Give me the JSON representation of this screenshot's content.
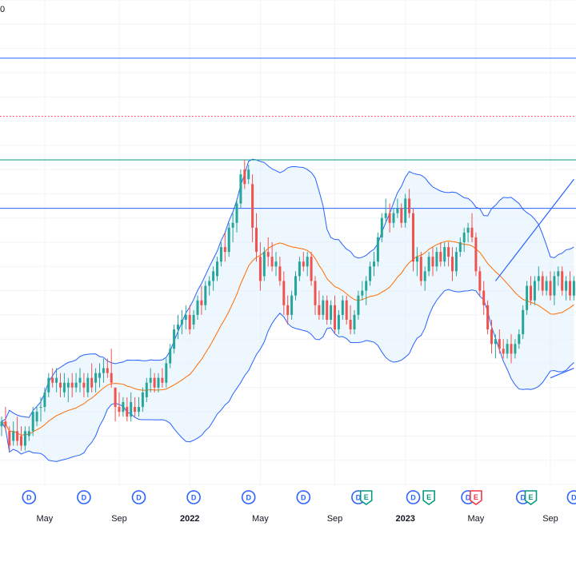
{
  "top_label": "0",
  "colors": {
    "up": "#26a69a",
    "down": "#ef5350",
    "grid": "#f0f3fa",
    "band_line": "#2962ff",
    "band_fill": "#e3f2fd",
    "basis": "#ff6d00",
    "hline_blue": "#2962ff",
    "hline_green": "#089981",
    "hline_red_dotted": "#f23645",
    "dividend": "#2962ff",
    "earnings_up": "#089981",
    "earnings_down": "#f23645"
  },
  "chart_data": {
    "type": "candlestick",
    "title": "",
    "indicators": [
      "Bollinger Bands"
    ],
    "x_axis": {
      "ticks": [
        {
          "label": "May",
          "index": 11
        },
        {
          "label": "Sep",
          "index": 30
        },
        {
          "label": "2022",
          "index": 48
        },
        {
          "label": "May",
          "index": 66
        },
        {
          "label": "Sep",
          "index": 85
        },
        {
          "label": "2023",
          "index": 103
        },
        {
          "label": "May",
          "index": 121
        },
        {
          "label": "Sep",
          "index": 140
        }
      ]
    },
    "y_range": [
      30,
      130
    ],
    "horizontal_lines": [
      {
        "value": 118,
        "style": "solid",
        "color_key": "hline_blue"
      },
      {
        "value": 106,
        "style": "dotted",
        "color_key": "hline_red_dotted"
      },
      {
        "value": 97,
        "style": "solid",
        "color_key": "hline_green"
      },
      {
        "value": 87,
        "style": "solid",
        "color_key": "hline_blue"
      }
    ],
    "trend_lines": [
      {
        "from": {
          "index": 126,
          "value": 72
        },
        "to": {
          "index": 146,
          "value": 93
        }
      },
      {
        "from": {
          "index": 140,
          "value": 52
        },
        "to": {
          "index": 146,
          "value": 54
        }
      }
    ],
    "events": [
      {
        "type": "D",
        "index": 7
      },
      {
        "type": "D",
        "index": 21
      },
      {
        "type": "D",
        "index": 35
      },
      {
        "type": "D",
        "index": 49
      },
      {
        "type": "D",
        "index": 63
      },
      {
        "type": "D",
        "index": 77
      },
      {
        "type": "D",
        "index": 91
      },
      {
        "type": "E",
        "index": 93,
        "kind": "earnings_up"
      },
      {
        "type": "D",
        "index": 105
      },
      {
        "type": "E",
        "index": 109,
        "kind": "earnings_up"
      },
      {
        "type": "D",
        "index": 119
      },
      {
        "type": "E",
        "index": 121,
        "kind": "earnings_down"
      },
      {
        "type": "D",
        "index": 133
      },
      {
        "type": "E",
        "index": 135,
        "kind": "earnings_up"
      },
      {
        "type": "D",
        "index": 146
      }
    ],
    "candles": [
      [
        42.0,
        44.0,
        40.0,
        43.0
      ],
      [
        43.0,
        46.0,
        41.0,
        42.0
      ],
      [
        41.0,
        42.0,
        37.0,
        38.0
      ],
      [
        39.0,
        43.0,
        38.0,
        41.0
      ],
      [
        41.0,
        44.0,
        38.0,
        39.0
      ],
      [
        40.0,
        42.0,
        37.0,
        38.0
      ],
      [
        38.0,
        42.0,
        37.0,
        41.0
      ],
      [
        40.0,
        42.0,
        39.0,
        41.0
      ],
      [
        41.0,
        46.0,
        40.0,
        45.0
      ],
      [
        43.0,
        46.0,
        42.0,
        45.0
      ],
      [
        46.0,
        48.0,
        43.0,
        46.0
      ],
      [
        46.0,
        50.0,
        45.0,
        49.0
      ],
      [
        49.0,
        53.0,
        48.0,
        52.0
      ],
      [
        52.0,
        54.0,
        50.0,
        51.0
      ],
      [
        51.0,
        54.0,
        49.0,
        52.0
      ],
      [
        51.0,
        53.0,
        48.0,
        50.0
      ],
      [
        49.0,
        53.0,
        48.0,
        51.0
      ],
      [
        50.0,
        52.0,
        47.0,
        51.0
      ],
      [
        51.0,
        53.0,
        48.0,
        50.0
      ],
      [
        50.0,
        53.0,
        49.0,
        51.0
      ],
      [
        51.0,
        54.0,
        49.0,
        52.0
      ],
      [
        51.0,
        53.0,
        48.0,
        50.0
      ],
      [
        49.0,
        53.0,
        48.0,
        52.0
      ],
      [
        52.0,
        55.0,
        49.0,
        50.0
      ],
      [
        51.0,
        54.0,
        49.0,
        53.0
      ],
      [
        52.0,
        55.0,
        50.0,
        53.0
      ],
      [
        53.0,
        56.0,
        51.0,
        54.0
      ],
      [
        54.0,
        56.0,
        52.0,
        53.0
      ],
      [
        53.0,
        58.0,
        50.0,
        51.0
      ],
      [
        50.0,
        50.0,
        43.0,
        46.0
      ],
      [
        46.0,
        49.0,
        44.0,
        45.0
      ],
      [
        45.0,
        48.0,
        44.0,
        47.0
      ],
      [
        46.0,
        48.0,
        43.0,
        44.0
      ],
      [
        44.0,
        49.0,
        43.0,
        47.0
      ],
      [
        46.0,
        48.0,
        44.0,
        45.0
      ],
      [
        45.0,
        48.0,
        44.0,
        46.0
      ],
      [
        46.0,
        50.0,
        45.0,
        49.0
      ],
      [
        48.0,
        52.0,
        47.0,
        51.0
      ],
      [
        51.0,
        54.0,
        49.0,
        52.0
      ],
      [
        52.0,
        53.0,
        49.0,
        50.0
      ],
      [
        50.0,
        53.0,
        49.0,
        52.0
      ],
      [
        52.0,
        54.0,
        50.0,
        51.0
      ],
      [
        51.0,
        56.0,
        50.0,
        55.0
      ],
      [
        55.0,
        59.0,
        54.0,
        58.0
      ],
      [
        58.0,
        63.0,
        57.0,
        62.0
      ],
      [
        62.0,
        65.0,
        60.0,
        63.0
      ],
      [
        63.0,
        66.0,
        61.0,
        64.0
      ],
      [
        64.0,
        67.0,
        62.0,
        65.0
      ],
      [
        65.0,
        67.0,
        61.0,
        62.0
      ],
      [
        63.0,
        66.0,
        62.0,
        65.0
      ],
      [
        65.0,
        69.0,
        64.0,
        68.0
      ],
      [
        68.0,
        71.0,
        65.0,
        67.0
      ],
      [
        67.0,
        72.0,
        66.0,
        71.0
      ],
      [
        71.0,
        73.0,
        69.0,
        72.0
      ],
      [
        72.0,
        75.0,
        70.0,
        74.0
      ],
      [
        73.0,
        77.0,
        72.0,
        76.0
      ],
      [
        76.0,
        80.0,
        75.0,
        79.0
      ],
      [
        79.0,
        82.0,
        76.0,
        78.0
      ],
      [
        78.0,
        84.0,
        77.0,
        83.0
      ],
      [
        83.0,
        86.0,
        80.0,
        84.0
      ],
      [
        84.0,
        89.0,
        82.0,
        88.0
      ],
      [
        88.0,
        95.0,
        87.0,
        94.0
      ],
      [
        95.0,
        97.0,
        91.0,
        92.0
      ],
      [
        93.0,
        96.0,
        92.0,
        95.0
      ],
      [
        92.0,
        94.0,
        80.0,
        83.0
      ],
      [
        83.0,
        86.0,
        76.0,
        78.0
      ],
      [
        77.0,
        80.0,
        70.0,
        72.0
      ],
      [
        73.0,
        79.0,
        72.0,
        78.0
      ],
      [
        78.0,
        81.0,
        75.0,
        77.0
      ],
      [
        77.0,
        80.0,
        74.0,
        75.0
      ],
      [
        75.0,
        78.0,
        73.0,
        76.0
      ],
      [
        75.0,
        77.0,
        71.0,
        72.0
      ],
      [
        72.0,
        74.0,
        65.0,
        67.0
      ],
      [
        67.0,
        69.0,
        63.0,
        65.0
      ],
      [
        65.0,
        70.0,
        64.0,
        69.0
      ],
      [
        69.0,
        74.0,
        68.0,
        73.0
      ],
      [
        73.0,
        77.0,
        72.0,
        76.0
      ],
      [
        76.0,
        78.0,
        74.0,
        75.0
      ],
      [
        75.0,
        78.0,
        73.0,
        77.0
      ],
      [
        77.0,
        78.0,
        71.0,
        72.0
      ],
      [
        72.0,
        73.0,
        65.0,
        67.0
      ],
      [
        67.0,
        70.0,
        64.0,
        65.0
      ],
      [
        65.0,
        69.0,
        64.0,
        68.0
      ],
      [
        68.0,
        69.0,
        63.0,
        64.0
      ],
      [
        64.0,
        68.0,
        63.0,
        67.0
      ],
      [
        67.0,
        69.0,
        61.0,
        62.0
      ],
      [
        62.0,
        66.0,
        61.0,
        65.0
      ],
      [
        65.0,
        69.0,
        64.0,
        68.0
      ],
      [
        68.0,
        69.0,
        63.0,
        64.0
      ],
      [
        64.0,
        67.0,
        61.0,
        62.0
      ],
      [
        62.0,
        66.0,
        61.0,
        65.0
      ],
      [
        65.0,
        70.0,
        64.0,
        69.0
      ],
      [
        69.0,
        72.0,
        68.0,
        70.0
      ],
      [
        70.0,
        73.0,
        67.0,
        72.0
      ],
      [
        72.0,
        76.0,
        71.0,
        75.0
      ],
      [
        75.0,
        78.0,
        73.0,
        76.0
      ],
      [
        76.0,
        82.0,
        75.0,
        81.0
      ],
      [
        81.0,
        86.0,
        80.0,
        85.0
      ],
      [
        85.0,
        89.0,
        84.0,
        86.0
      ],
      [
        86.0,
        88.0,
        82.0,
        84.0
      ],
      [
        84.0,
        87.0,
        83.0,
        86.0
      ],
      [
        86.0,
        89.0,
        85.0,
        87.0
      ],
      [
        87.0,
        88.0,
        83.0,
        84.0
      ],
      [
        84.0,
        90.0,
        83.0,
        89.0
      ],
      [
        89.0,
        91.0,
        85.0,
        86.0
      ],
      [
        86.0,
        87.0,
        74.0,
        76.0
      ],
      [
        76.0,
        79.0,
        73.0,
        77.0
      ],
      [
        77.0,
        78.0,
        71.0,
        72.0
      ],
      [
        72.0,
        75.0,
        70.0,
        74.0
      ],
      [
        74.0,
        78.0,
        73.0,
        77.0
      ],
      [
        77.0,
        79.0,
        73.0,
        75.0
      ],
      [
        75.0,
        79.0,
        74.0,
        78.0
      ],
      [
        78.0,
        80.0,
        75.0,
        76.0
      ],
      [
        76.0,
        80.0,
        75.0,
        79.0
      ],
      [
        79.0,
        80.0,
        75.0,
        77.0
      ],
      [
        77.0,
        79.0,
        72.0,
        74.0
      ],
      [
        74.0,
        79.0,
        73.0,
        78.0
      ],
      [
        78.0,
        81.0,
        77.0,
        80.0
      ],
      [
        80.0,
        83.0,
        78.0,
        82.0
      ],
      [
        82.0,
        84.0,
        80.0,
        83.0
      ],
      [
        83.0,
        86.0,
        80.0,
        81.0
      ],
      [
        81.0,
        82.0,
        73.0,
        74.0
      ],
      [
        74.0,
        75.0,
        69.0,
        70.0
      ],
      [
        70.0,
        72.0,
        65.0,
        67.0
      ],
      [
        67.0,
        68.0,
        61.0,
        62.0
      ],
      [
        62.0,
        64.0,
        57.0,
        59.0
      ],
      [
        59.0,
        61.0,
        56.0,
        60.0
      ],
      [
        60.0,
        62.0,
        57.0,
        58.0
      ],
      [
        58.0,
        60.0,
        56.0,
        57.0
      ],
      [
        57.0,
        60.0,
        56.0,
        59.0
      ],
      [
        59.0,
        61.0,
        55.0,
        57.0
      ],
      [
        57.0,
        60.0,
        56.0,
        59.0
      ],
      [
        59.0,
        62.0,
        58.0,
        61.0
      ],
      [
        61.0,
        67.0,
        60.0,
        66.0
      ],
      [
        66.0,
        72.0,
        65.0,
        71.0
      ],
      [
        71.0,
        73.0,
        67.0,
        68.0
      ],
      [
        68.0,
        73.0,
        67.0,
        72.0
      ],
      [
        72.0,
        75.0,
        70.0,
        73.0
      ],
      [
        73.0,
        74.0,
        69.0,
        70.0
      ],
      [
        70.0,
        73.0,
        69.0,
        72.0
      ],
      [
        72.0,
        74.0,
        68.0,
        69.0
      ],
      [
        69.0,
        74.0,
        67.0,
        73.0
      ],
      [
        73.0,
        75.0,
        71.0,
        74.0
      ],
      [
        74.0,
        75.0,
        69.0,
        70.0
      ],
      [
        70.0,
        73.0,
        68.0,
        72.0
      ],
      [
        72.0,
        74.0,
        68.0,
        69.0
      ],
      [
        69.0,
        73.0,
        68.0,
        72.0
      ]
    ]
  }
}
